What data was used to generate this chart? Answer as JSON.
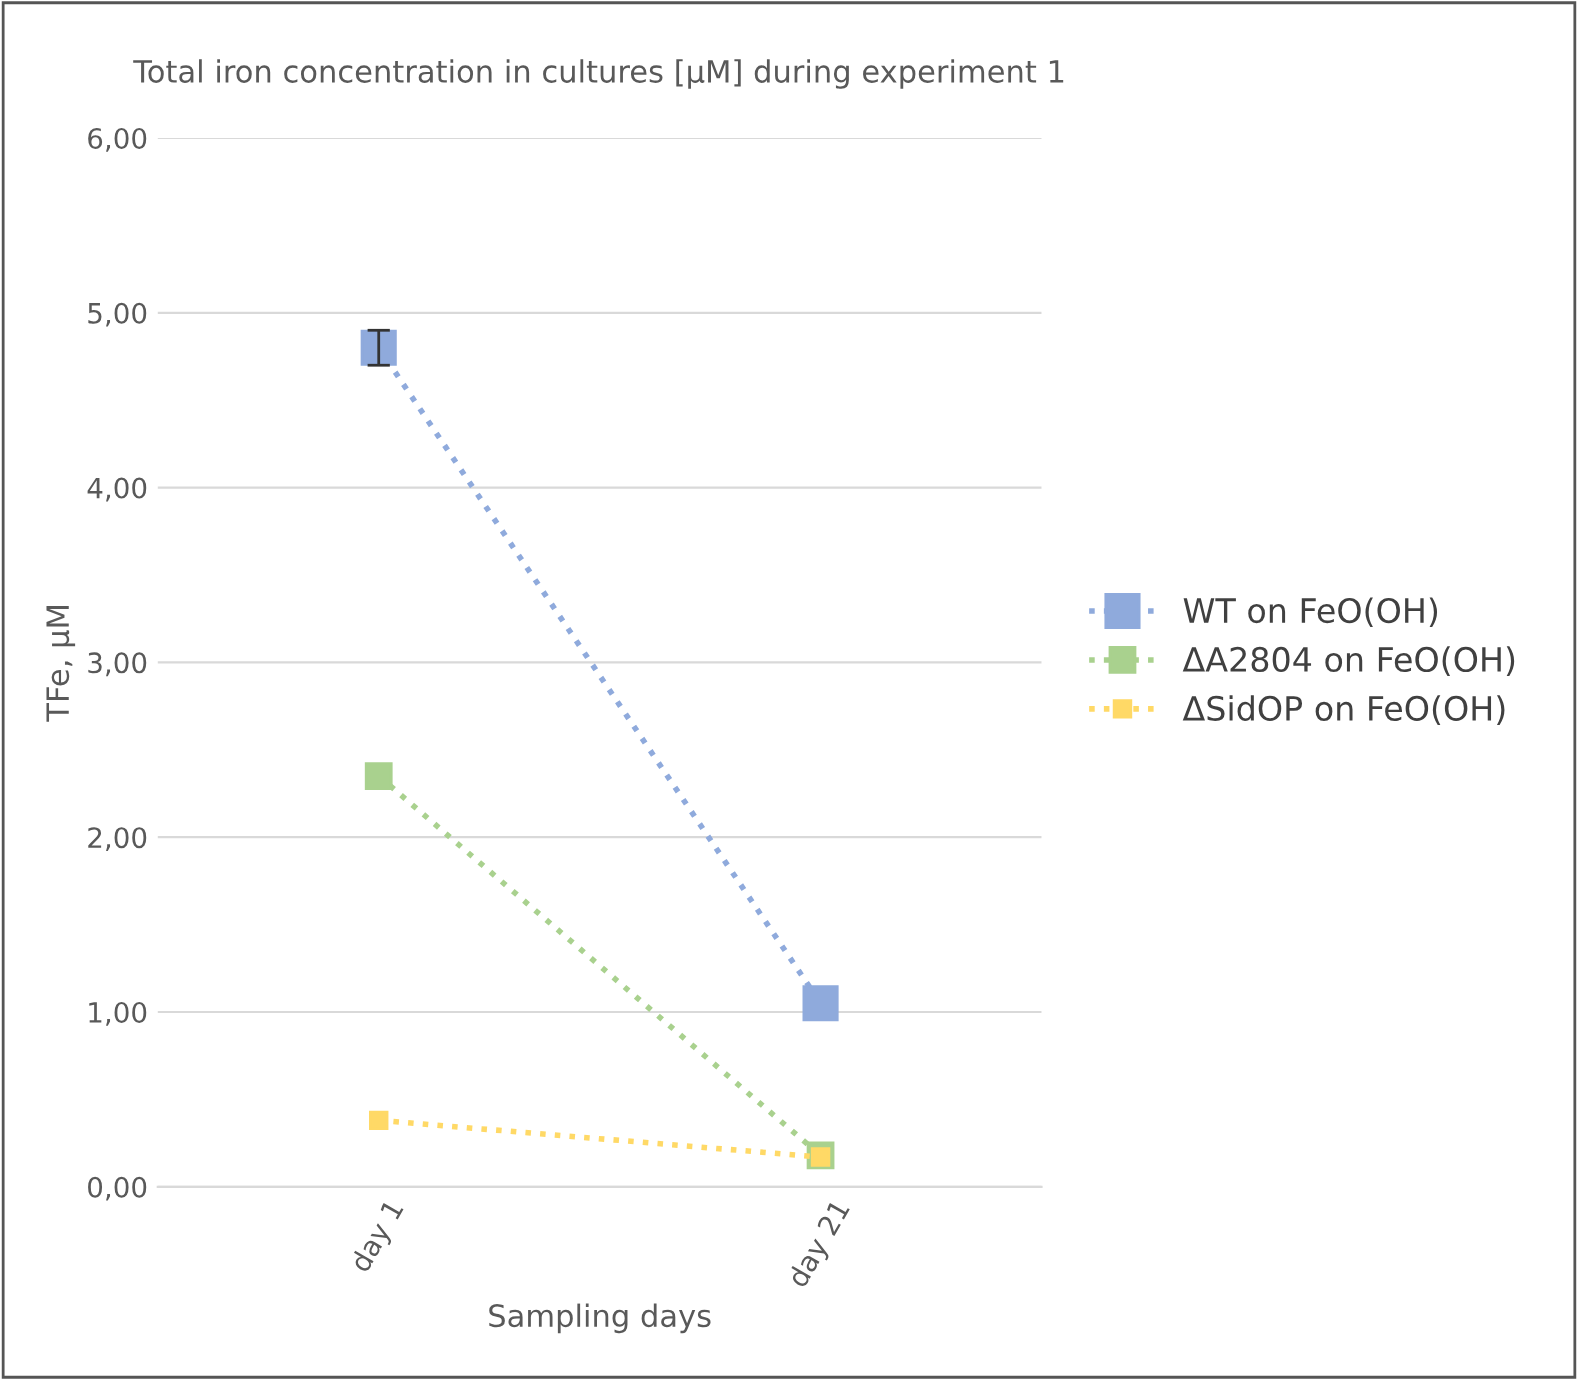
{
  "chart_data": {
    "type": "line",
    "title": "Total iron concentration in cultures [µM] during experiment 1",
    "xlabel": "Sampling days",
    "ylabel": "TFe, µM",
    "categories": [
      "day 1",
      "day 21"
    ],
    "series": [
      {
        "name": "WT on FeO(OH)",
        "color": "#8faadc",
        "values": [
          4.8,
          1.05
        ],
        "errors": [
          0.1,
          null
        ]
      },
      {
        "name": "ΔA2804 on FeO(OH)",
        "color": "#a9d18e",
        "values": [
          2.35,
          0.18
        ]
      },
      {
        "name": "ΔSidOP on FeO(OH)",
        "color": "#ffd966",
        "values": [
          0.38,
          0.17
        ]
      }
    ],
    "ylim": [
      0,
      6
    ],
    "yticks": [
      {
        "value": 0,
        "label": "0,00"
      },
      {
        "value": 1,
        "label": "1,00"
      },
      {
        "value": 2,
        "label": "2,00"
      },
      {
        "value": 3,
        "label": "3,00"
      },
      {
        "value": 4,
        "label": "4,00"
      },
      {
        "value": 5,
        "label": "5,00"
      },
      {
        "value": 6,
        "label": "6,00"
      }
    ],
    "grid": "y",
    "legend": "right",
    "marker": "square",
    "line_style": "dotted"
  }
}
